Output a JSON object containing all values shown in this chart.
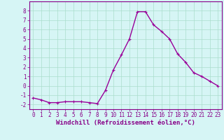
{
  "x": [
    0,
    1,
    2,
    3,
    4,
    5,
    6,
    7,
    8,
    9,
    10,
    11,
    12,
    13,
    14,
    15,
    16,
    17,
    18,
    19,
    20,
    21,
    22,
    23
  ],
  "y": [
    -1.3,
    -1.5,
    -1.8,
    -1.8,
    -1.7,
    -1.7,
    -1.7,
    -1.8,
    -1.9,
    -0.5,
    1.7,
    3.3,
    5.0,
    7.9,
    7.9,
    6.5,
    5.8,
    5.0,
    3.4,
    2.5,
    1.4,
    1.0,
    0.5,
    0.0
  ],
  "line_color": "#990099",
  "marker": "+",
  "marker_size": 3,
  "xlabel": "Windchill (Refroidissement éolien,°C)",
  "xlim": [
    -0.5,
    23.5
  ],
  "ylim": [
    -2.5,
    9.0
  ],
  "yticks": [
    -2,
    -1,
    0,
    1,
    2,
    3,
    4,
    5,
    6,
    7,
    8
  ],
  "xticks": [
    0,
    1,
    2,
    3,
    4,
    5,
    6,
    7,
    8,
    9,
    10,
    11,
    12,
    13,
    14,
    15,
    16,
    17,
    18,
    19,
    20,
    21,
    22,
    23
  ],
  "bg_color": "#d6f5f5",
  "grid_color": "#aaddcc",
  "axis_color": "#880088",
  "tick_color": "#880088",
  "label_color": "#880088",
  "line_width": 1.0,
  "tick_fontsize": 5.5,
  "xlabel_fontsize": 6.5
}
